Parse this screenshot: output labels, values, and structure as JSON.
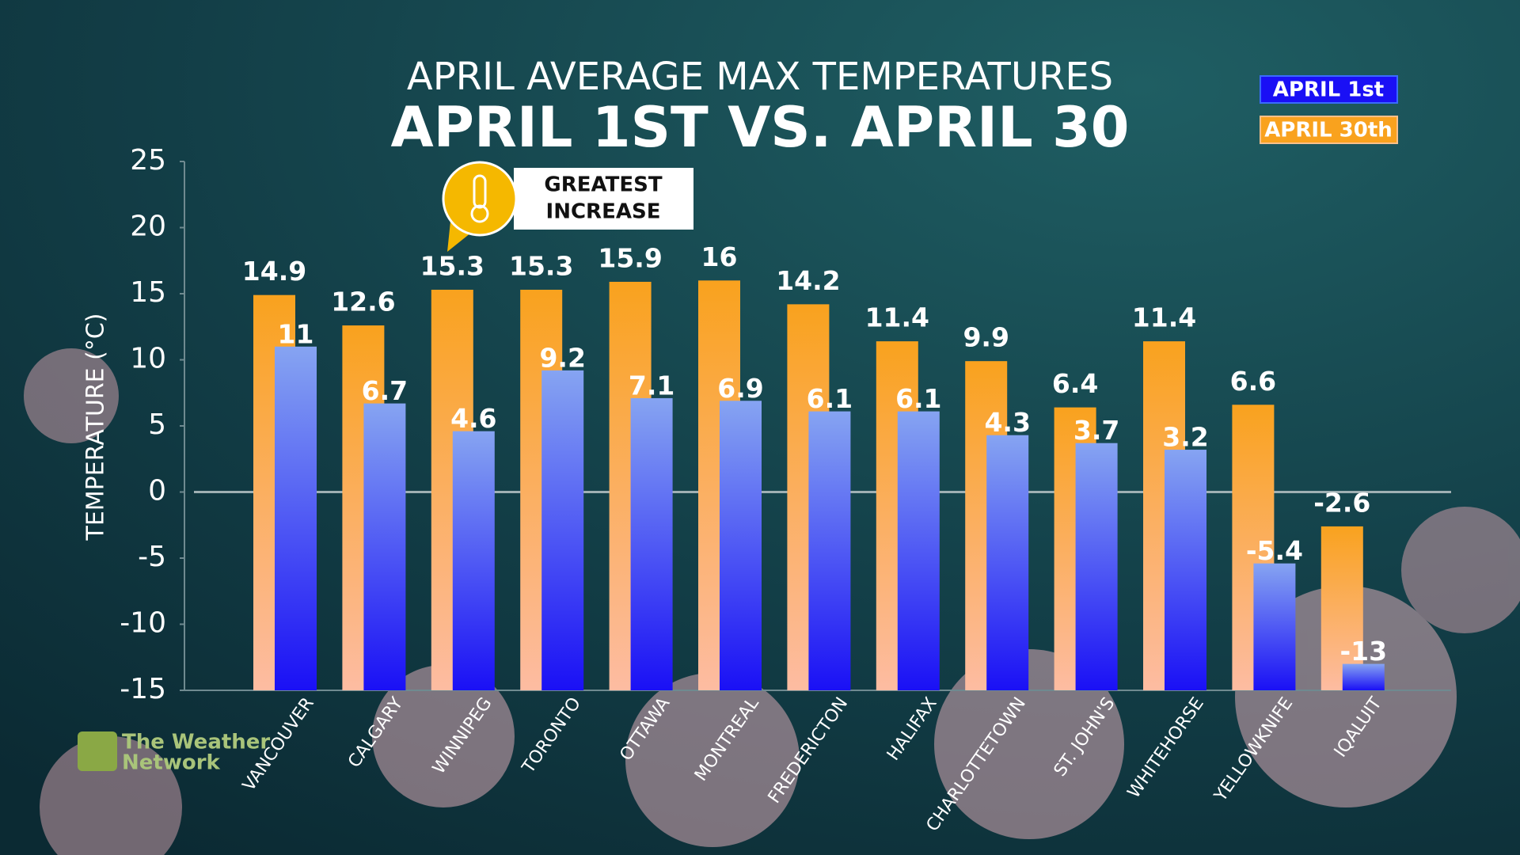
{
  "chart_data": {
    "type": "bar",
    "title": "APRIL AVERAGE MAX TEMPERATURES",
    "subtitle": "APRIL 1ST VS. APRIL 30",
    "y_label": "TEMPERATURE (°C)",
    "annotation": [
      "GREATEST",
      "INCREASE"
    ],
    "logo": [
      "The Weather",
      "Network"
    ],
    "categories": [
      "VANCOUVER",
      "CALGARY",
      "WINNIPEG",
      "TORONTO",
      "OTTAWA",
      "MONTREAL",
      "FREDERICTON",
      "HALIFAX",
      "CHARLOTTETOWN",
      "ST. JOHN'S",
      "WHITEHORSE",
      "YELLOWKNIFE",
      "IQALUIT"
    ],
    "series": [
      {
        "name": "APRIL 30th",
        "color": "#f9a21e",
        "values": [
          14.9,
          12.6,
          15.3,
          15.3,
          15.9,
          16,
          14.2,
          11.4,
          9.9,
          6.4,
          11.4,
          6.6,
          -2.6
        ]
      },
      {
        "name": "APRIL 1st",
        "color": "#1a10f5",
        "values": [
          11,
          6.7,
          4.6,
          9.2,
          7.1,
          6.9,
          6.1,
          6.1,
          4.3,
          3.7,
          3.2,
          -5.4,
          -13
        ]
      }
    ],
    "ylim": [
      -15,
      25
    ],
    "yticks": [
      -15,
      -10,
      -5,
      0,
      5,
      10,
      15,
      20,
      25
    ]
  }
}
